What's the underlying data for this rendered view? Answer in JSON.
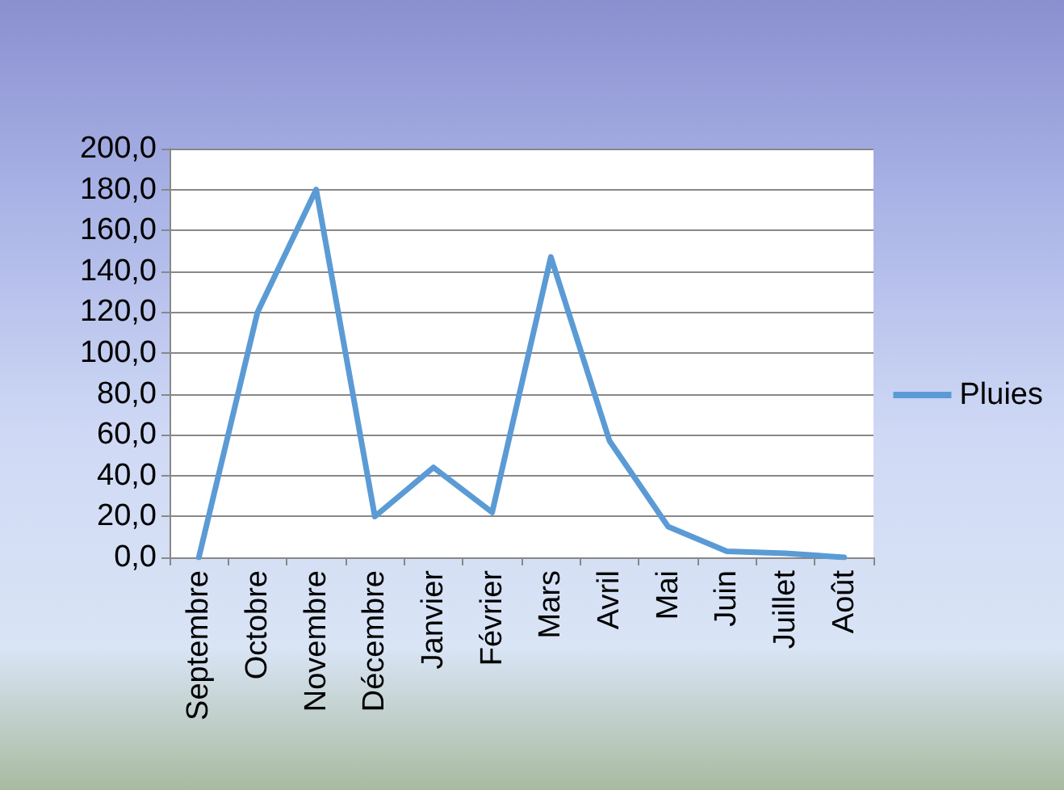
{
  "chart_data": {
    "type": "line",
    "categories": [
      "Septembre",
      "Octobre",
      "Novembre",
      "Décembre",
      "Janvier",
      "Février",
      "Mars",
      "Avril",
      "Mai",
      "Juin",
      "Juillet",
      "Août"
    ],
    "series": [
      {
        "name": "Pluies",
        "color": "#5b9bd5",
        "values": [
          0,
          120,
          180,
          20,
          44,
          22,
          147,
          57,
          15,
          3,
          2,
          0
        ]
      }
    ],
    "ylim": [
      0,
      200
    ],
    "yticks": [
      {
        "value": 0,
        "label": "0,0"
      },
      {
        "value": 20,
        "label": "20,0"
      },
      {
        "value": 40,
        "label": "40,0"
      },
      {
        "value": 60,
        "label": "60,0"
      },
      {
        "value": 80,
        "label": "80,0"
      },
      {
        "value": 100,
        "label": "100,0"
      },
      {
        "value": 120,
        "label": "120,0"
      },
      {
        "value": 140,
        "label": "140,0"
      },
      {
        "value": 160,
        "label": "160,0"
      },
      {
        "value": 180,
        "label": "180,0"
      },
      {
        "value": 200,
        "label": "200,0"
      }
    ],
    "grid": "y",
    "legend": "right",
    "marker": "none",
    "line_style": "solid"
  }
}
